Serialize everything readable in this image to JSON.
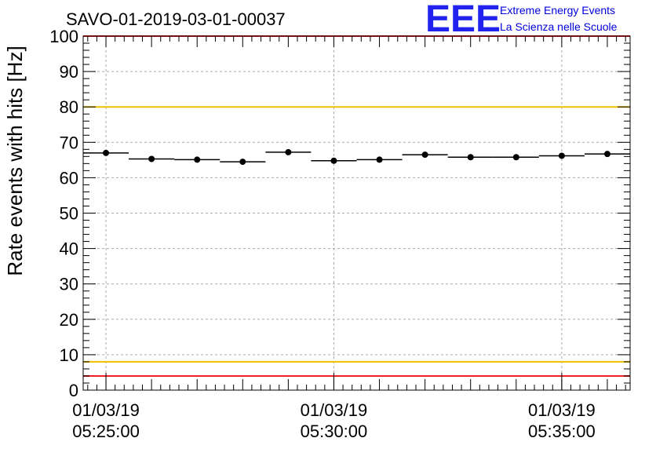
{
  "chart_data": {
    "type": "scatter",
    "title": "SAVO-01-2019-03-01-00037",
    "ylabel": "Rate events with hits [Hz]",
    "xlabel": "",
    "ylim": [
      0,
      100
    ],
    "yticks": [
      0,
      10,
      20,
      30,
      40,
      50,
      60,
      70,
      80,
      90,
      100
    ],
    "x_unit": "minutes after 05:25:00 on 01/03/19",
    "xlim": [
      -0.5,
      11.5
    ],
    "x_ticks": [
      {
        "x": 0,
        "date": "01/03/19",
        "time": "05:25:00"
      },
      {
        "x": 5,
        "date": "01/03/19",
        "time": "05:30:00"
      },
      {
        "x": 10,
        "date": "01/03/19",
        "time": "05:35:00"
      }
    ],
    "grid": true,
    "bin_width_min": 1,
    "series": [
      {
        "name": "rate",
        "x": [
          0,
          1,
          2,
          3,
          4,
          5,
          6,
          7,
          8,
          9,
          10,
          11
        ],
        "values": [
          67.0,
          65.3,
          65.1,
          64.5,
          67.2,
          64.8,
          65.1,
          66.5,
          65.8,
          65.8,
          66.2,
          66.7
        ],
        "errors": [
          0.7,
          0.7,
          0.7,
          0.7,
          0.7,
          0.7,
          0.7,
          0.7,
          0.7,
          0.7,
          0.7,
          0.7
        ]
      }
    ],
    "reference_lines": [
      {
        "y": 100,
        "color": "#ee2222"
      },
      {
        "y": 80,
        "color": "#f0c000"
      },
      {
        "y": 8,
        "color": "#f0c000"
      },
      {
        "y": 4,
        "color": "#ee2222"
      }
    ]
  },
  "logo": {
    "big": "EEE",
    "line1": "Extreme Energy Events",
    "line2": "La Scienza nelle Scuole"
  }
}
